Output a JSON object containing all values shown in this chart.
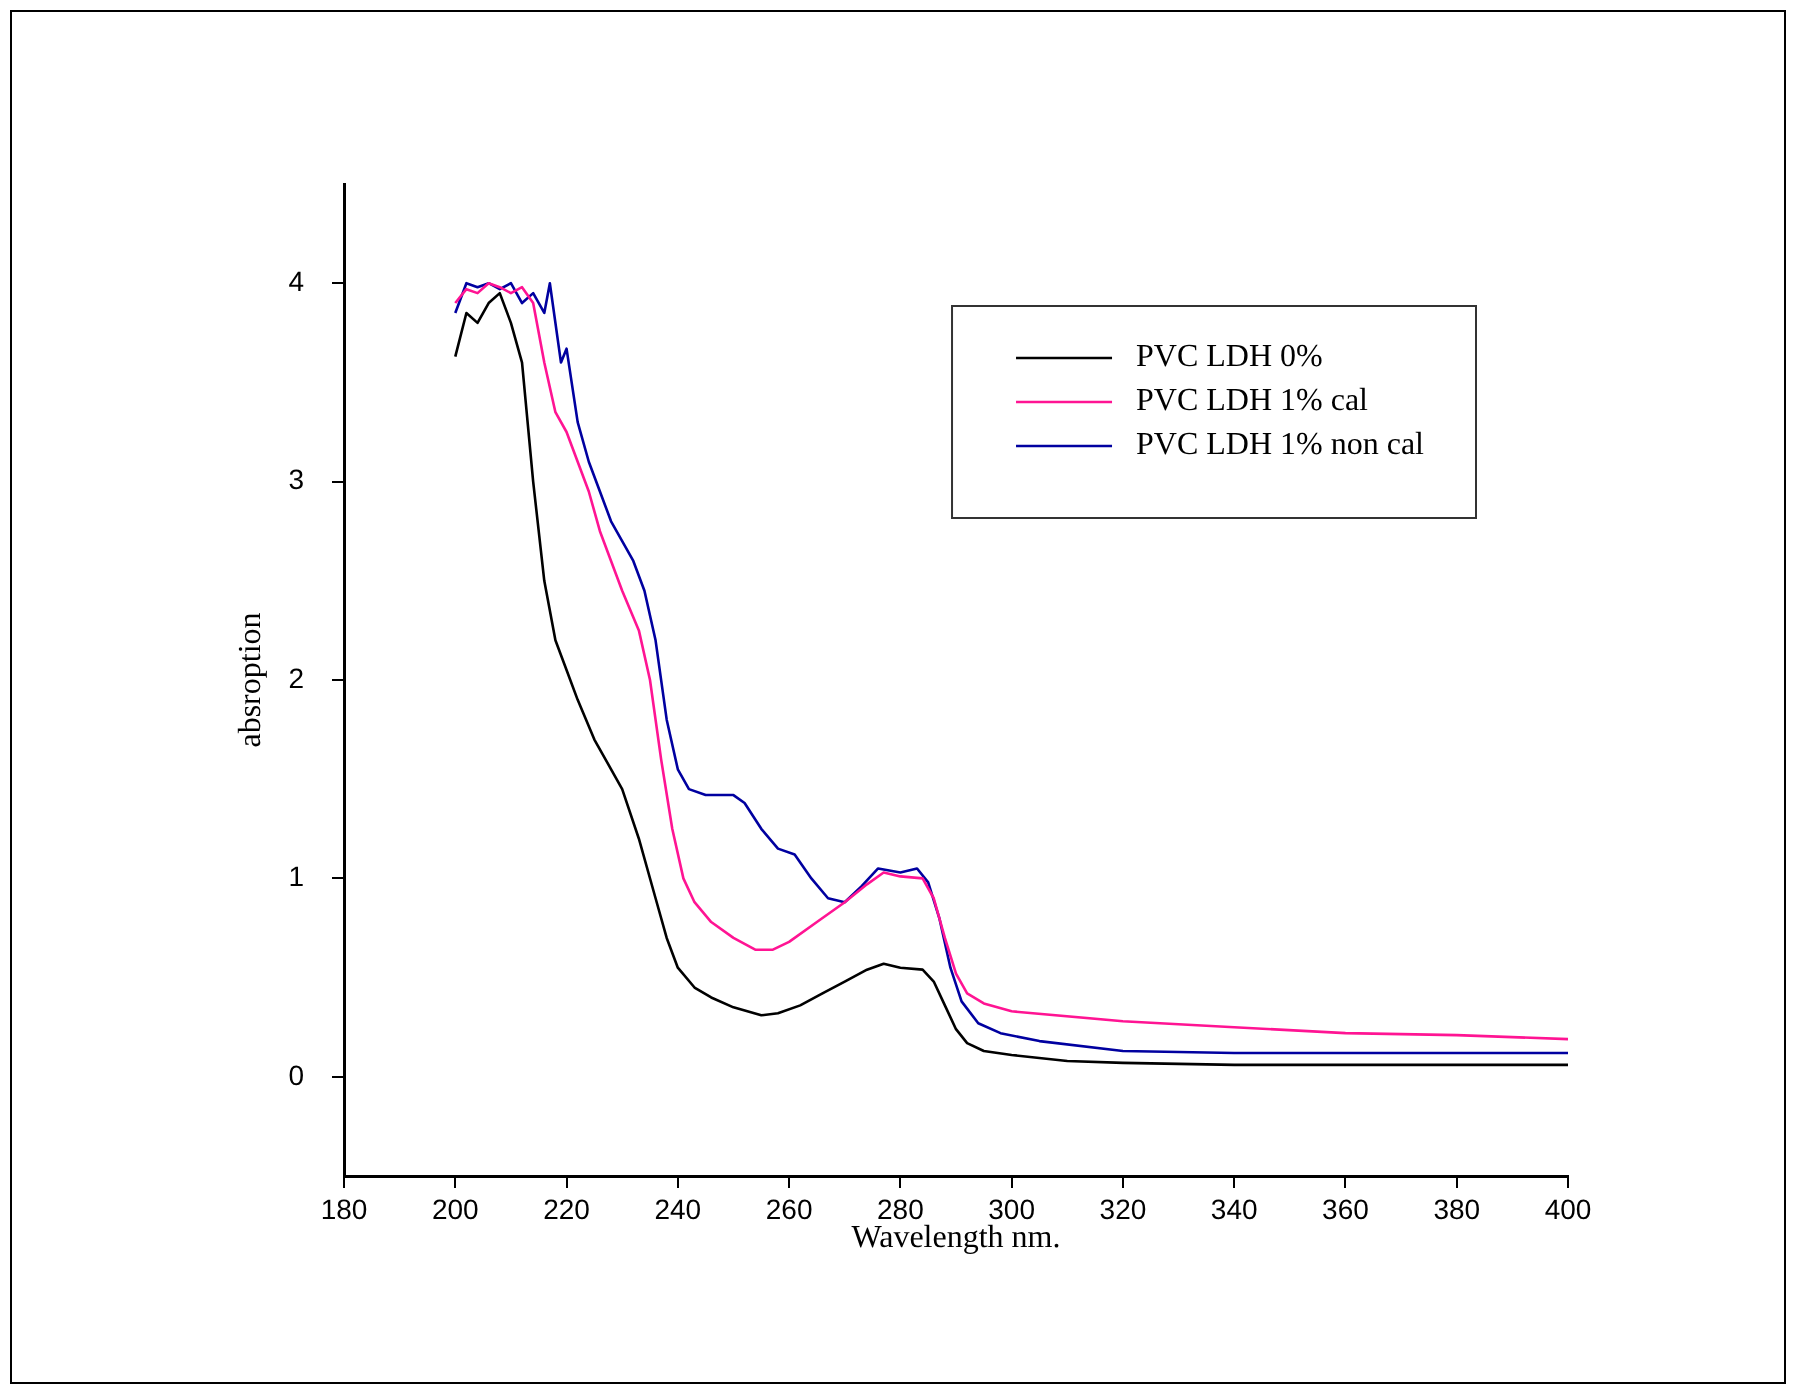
{
  "chart_data": {
    "type": "line",
    "xlabel": "Wavelength nm.",
    "ylabel": "absroption",
    "xlim": [
      180,
      400
    ],
    "xticks": [
      180,
      200,
      220,
      240,
      260,
      280,
      300,
      320,
      340,
      360,
      380,
      400
    ],
    "ylim": [
      -0.5,
      4.5
    ],
    "yticks": [
      0,
      1,
      2,
      3,
      4
    ],
    "grid": false,
    "legend": "top right",
    "marker": "none",
    "line_style": "solid",
    "series": [
      {
        "name": "PVC LDH 0%",
        "color": "#000000",
        "x": [
          200,
          202,
          204,
          206,
          208,
          210,
          212,
          214,
          216,
          218,
          220,
          222,
          225,
          230,
          233,
          236,
          238,
          240,
          243,
          246,
          250,
          255,
          258,
          262,
          266,
          270,
          274,
          277,
          280,
          284,
          286,
          288,
          290,
          292,
          295,
          300,
          310,
          320,
          340,
          360,
          400
        ],
        "values": [
          3.63,
          3.85,
          3.8,
          3.9,
          3.95,
          3.8,
          3.6,
          3.0,
          2.5,
          2.2,
          2.05,
          1.9,
          1.7,
          1.45,
          1.2,
          0.9,
          0.7,
          0.55,
          0.45,
          0.4,
          0.35,
          0.31,
          0.32,
          0.36,
          0.42,
          0.48,
          0.54,
          0.57,
          0.55,
          0.54,
          0.48,
          0.36,
          0.24,
          0.17,
          0.13,
          0.11,
          0.08,
          0.07,
          0.06,
          0.06,
          0.06
        ]
      },
      {
        "name": "PVC LDH 1% cal",
        "color": "#ff1493",
        "x": [
          200,
          202,
          204,
          206,
          208,
          210,
          212,
          214,
          216,
          218,
          220,
          222,
          224,
          226,
          228,
          230,
          233,
          235,
          237,
          239,
          241,
          243,
          246,
          250,
          254,
          257,
          260,
          265,
          270,
          274,
          277,
          280,
          284,
          286,
          288,
          290,
          292,
          295,
          300,
          320,
          340,
          360,
          380,
          400
        ],
        "values": [
          3.9,
          3.97,
          3.95,
          4.0,
          3.98,
          3.95,
          3.98,
          3.9,
          3.6,
          3.35,
          3.25,
          3.1,
          2.95,
          2.75,
          2.6,
          2.45,
          2.25,
          2.0,
          1.6,
          1.25,
          1.0,
          0.88,
          0.78,
          0.7,
          0.64,
          0.64,
          0.68,
          0.78,
          0.88,
          0.97,
          1.03,
          1.01,
          1.0,
          0.9,
          0.7,
          0.52,
          0.42,
          0.37,
          0.33,
          0.28,
          0.25,
          0.22,
          0.21,
          0.19
        ]
      },
      {
        "name": "PVC LDH 1% non cal",
        "color": "#0000a0",
        "x": [
          200,
          202,
          204,
          206,
          208,
          210,
          212,
          214,
          216,
          217,
          219,
          220,
          222,
          224,
          226,
          228,
          230,
          232,
          234,
          236,
          238,
          240,
          242,
          245,
          250,
          252,
          255,
          258,
          261,
          264,
          267,
          270,
          273,
          276,
          280,
          283,
          285,
          287,
          289,
          291,
          294,
          298,
          305,
          320,
          340,
          360,
          400
        ],
        "values": [
          3.85,
          4.0,
          3.98,
          4.0,
          3.97,
          4.0,
          3.9,
          3.95,
          3.85,
          4.0,
          3.6,
          3.67,
          3.3,
          3.1,
          2.95,
          2.8,
          2.7,
          2.6,
          2.45,
          2.2,
          1.8,
          1.55,
          1.45,
          1.42,
          1.42,
          1.38,
          1.25,
          1.15,
          1.12,
          1.0,
          0.9,
          0.88,
          0.96,
          1.05,
          1.03,
          1.05,
          0.98,
          0.8,
          0.55,
          0.38,
          0.27,
          0.22,
          0.18,
          0.13,
          0.12,
          0.12,
          0.12
        ]
      }
    ]
  }
}
